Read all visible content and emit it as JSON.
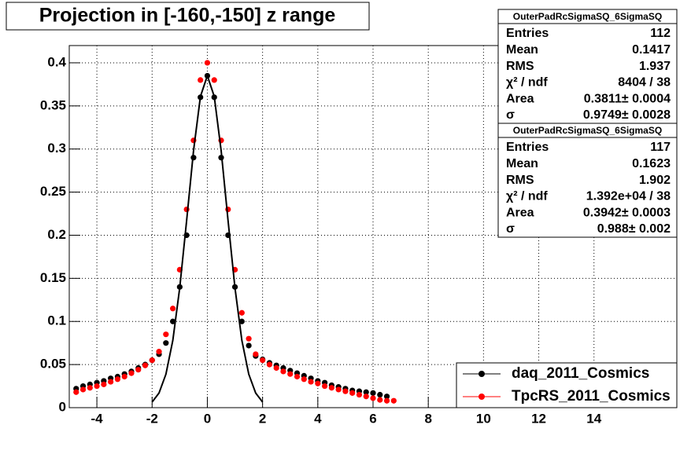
{
  "chart_data": {
    "type": "scatter",
    "title": "Projection in [-160,-150] z range",
    "xlim": [
      -5,
      17
    ],
    "ylim": [
      0,
      0.42
    ],
    "xticks": [
      -4,
      -2,
      0,
      2,
      4,
      6,
      8,
      10,
      12,
      14
    ],
    "yticks": [
      0,
      0.05,
      0.1,
      0.15,
      0.2,
      0.25,
      0.3,
      0.35,
      0.4
    ],
    "grid": true,
    "legend": "bottom-right",
    "series": [
      {
        "name": "daq_2011_Cosmics",
        "color": "#000000",
        "x": [
          -4.75,
          -4.5,
          -4.25,
          -4,
          -3.75,
          -3.5,
          -3.25,
          -3,
          -2.75,
          -2.5,
          -2.25,
          -2,
          -1.75,
          -1.5,
          -1.25,
          -1,
          -0.75,
          -0.5,
          -0.25,
          0,
          0.25,
          0.5,
          0.75,
          1,
          1.25,
          1.5,
          1.75,
          2,
          2.25,
          2.5,
          2.75,
          3,
          3.25,
          3.5,
          3.75,
          4,
          4.25,
          4.5,
          4.75,
          5,
          5.25,
          5.5,
          5.75,
          6,
          6.25,
          6.5
        ],
        "values": [
          0.022,
          0.025,
          0.027,
          0.029,
          0.031,
          0.034,
          0.036,
          0.039,
          0.042,
          0.046,
          0.05,
          0.055,
          0.062,
          0.075,
          0.1,
          0.14,
          0.2,
          0.29,
          0.36,
          0.385,
          0.36,
          0.29,
          0.2,
          0.14,
          0.1,
          0.072,
          0.06,
          0.056,
          0.052,
          0.049,
          0.046,
          0.043,
          0.04,
          0.037,
          0.034,
          0.031,
          0.029,
          0.026,
          0.024,
          0.022,
          0.02,
          0.019,
          0.018,
          0.017,
          0.015,
          0.013
        ]
      },
      {
        "name": "TpcRS_2011_Cosmics",
        "color": "#ff0000",
        "x": [
          -4.75,
          -4.5,
          -4.25,
          -4,
          -3.75,
          -3.5,
          -3.25,
          -3,
          -2.75,
          -2.5,
          -2.25,
          -2,
          -1.75,
          -1.5,
          -1.25,
          -1,
          -0.75,
          -0.5,
          -0.25,
          0,
          0.25,
          0.5,
          0.75,
          1,
          1.25,
          1.5,
          1.75,
          2,
          2.25,
          2.5,
          2.75,
          3,
          3.25,
          3.5,
          3.75,
          4,
          4.25,
          4.5,
          4.75,
          5,
          5.25,
          5.5,
          5.75,
          6,
          6.25,
          6.5,
          6.75
        ],
        "values": [
          0.018,
          0.021,
          0.023,
          0.025,
          0.027,
          0.03,
          0.033,
          0.036,
          0.04,
          0.044,
          0.049,
          0.055,
          0.065,
          0.085,
          0.115,
          0.16,
          0.23,
          0.31,
          0.38,
          0.4,
          0.38,
          0.31,
          0.23,
          0.16,
          0.11,
          0.08,
          0.062,
          0.055,
          0.05,
          0.046,
          0.042,
          0.039,
          0.036,
          0.033,
          0.03,
          0.028,
          0.025,
          0.023,
          0.021,
          0.019,
          0.017,
          0.015,
          0.013,
          0.011,
          0.009,
          0.008,
          0.008
        ]
      }
    ],
    "fit": {
      "color": "#000000",
      "x": [
        -2,
        -1.75,
        -1.5,
        -1.25,
        -1,
        -0.75,
        -0.5,
        -0.25,
        0,
        0.25,
        0.5,
        0.75,
        1,
        1.25,
        1.5,
        1.75,
        2
      ],
      "values": [
        0.0065,
        0.017,
        0.0388,
        0.078,
        0.139,
        0.217,
        0.298,
        0.361,
        0.385,
        0.361,
        0.298,
        0.217,
        0.139,
        0.078,
        0.0388,
        0.017,
        0.0065
      ]
    },
    "stats": [
      {
        "title": "OuterPadRcSigmaSQ_6SigmaSQ",
        "rows": [
          [
            "Entries",
            "112"
          ],
          [
            "Mean",
            "0.1417"
          ],
          [
            "RMS",
            "1.937"
          ],
          [
            "χ² / ndf",
            "8404 / 38"
          ],
          [
            "Area",
            "0.3811± 0.0004"
          ],
          [
            "σ",
            "0.9749± 0.0028"
          ]
        ]
      },
      {
        "title": "OuterPadRcSigmaSQ_6SigmaSQ",
        "rows": [
          [
            "Entries",
            "117"
          ],
          [
            "Mean",
            "0.1623"
          ],
          [
            "RMS",
            "1.902"
          ],
          [
            "χ² / ndf",
            "1.392e+04 / 38"
          ],
          [
            "Area",
            "0.3942± 0.0003"
          ],
          [
            "σ",
            "0.988± 0.002"
          ]
        ]
      }
    ]
  }
}
